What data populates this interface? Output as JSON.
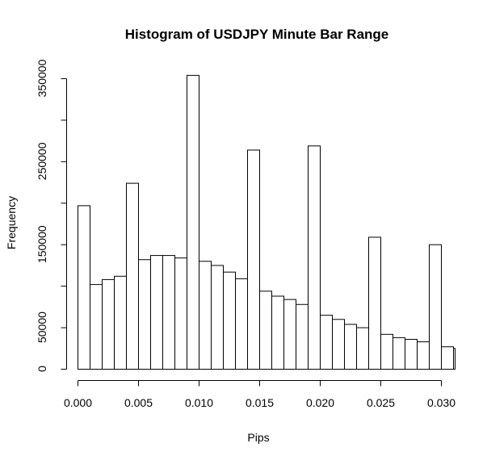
{
  "chart_data": {
    "type": "bar",
    "title": "Histogram of USDJPY Minute Bar Range",
    "xlabel": "Pips",
    "ylabel": "Frequency",
    "bin_width": 0.001,
    "x_start": 0.0,
    "xlim": [
      0.0,
      0.031
    ],
    "ylim": [
      0,
      350000
    ],
    "x_ticks": [
      0.0,
      0.005,
      0.01,
      0.015,
      0.02,
      0.025,
      0.03
    ],
    "x_tick_labels": [
      "0.000",
      "0.005",
      "0.010",
      "0.015",
      "0.020",
      "0.025",
      "0.030"
    ],
    "y_ticks": [
      0,
      50000,
      150000,
      250000,
      350000
    ],
    "y_tick_labels": [
      "0",
      "50000",
      "150000",
      "250000",
      "350000"
    ],
    "y_minor_ticks": [
      100000,
      200000,
      300000
    ],
    "values": [
      197000,
      102000,
      108000,
      112000,
      224000,
      132000,
      137000,
      137000,
      134000,
      354000,
      130000,
      125000,
      117000,
      109000,
      264000,
      94000,
      88000,
      84000,
      78000,
      269000,
      65000,
      60000,
      54000,
      50000,
      159000,
      42000,
      38000,
      36000,
      33000,
      150000,
      27000,
      25000
    ],
    "grid": false,
    "legend": "none"
  }
}
